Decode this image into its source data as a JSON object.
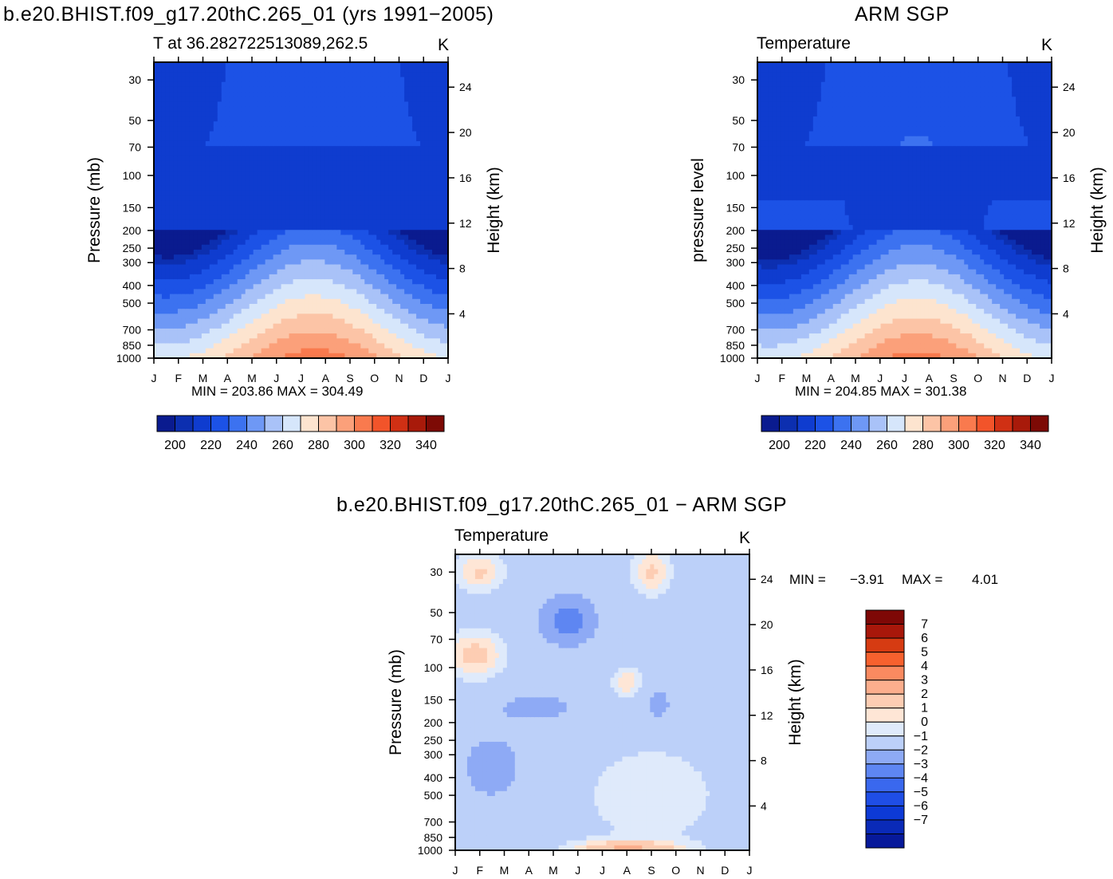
{
  "colors": {
    "abs_scale": [
      "#0a1b8f",
      "#0c2fb0",
      "#0f3ccf",
      "#1c52e6",
      "#3c72f0",
      "#6e98f5",
      "#a9c2f8",
      "#d6e6fb",
      "#fde4cf",
      "#fcc4a6",
      "#fba07a",
      "#f97a4e",
      "#f2542a",
      "#d03014",
      "#a81a0a",
      "#7d0a05"
    ],
    "diff_scale": [
      "#07199a",
      "#0a2ab8",
      "#0d3ad6",
      "#1f4ee6",
      "#3a68ee",
      "#5e86f2",
      "#8eaaf5",
      "#bcd0f9",
      "#dfeafb",
      "#fee6d6",
      "#fdcdb3",
      "#fcae8d",
      "#fa8a60",
      "#f7612e",
      "#d63b12",
      "#a8170a",
      "#7e0806"
    ]
  },
  "panels": [
    {
      "id": "model",
      "title": "b.e20.BHIST.f09_g17.20thC.265_01 (yrs 1991−2005)",
      "left_label": "T at 36.282722513089,262.5",
      "right_label": "K",
      "ylabel_left": "Pressure (mb)",
      "ylabel_right": "Height (km)",
      "minmax": "MIN = 203.86 MAX = 304.49"
    },
    {
      "id": "obs",
      "title": "ARM SGP",
      "left_label": "Temperature",
      "right_label": "K",
      "ylabel_left": "pressure level",
      "ylabel_right": "Height (km)",
      "minmax": "MIN = 204.85 MAX = 301.38"
    },
    {
      "id": "diff",
      "title": "b.e20.BHIST.f09_g17.20thC.265_01 − ARM SGP",
      "left_label": "Temperature",
      "right_label": "K",
      "ylabel_left": "Pressure (mb)",
      "ylabel_right": "Height (km)",
      "minmax_label_min": "MIN =",
      "minmax_val_min": "−3.91",
      "minmax_label_max": "MAX =",
      "minmax_val_max": "4.01"
    }
  ],
  "chart_data": [
    {
      "type": "heatmap",
      "title": "b.e20.BHIST.f09_g17.20thC.265_01 (yrs 1991−2005)",
      "x": [
        "J",
        "F",
        "M",
        "A",
        "M",
        "J",
        "J",
        "A",
        "S",
        "O",
        "N",
        "D",
        "J"
      ],
      "y_pressure_ticks": [
        "30",
        "50",
        "70",
        "100",
        "150",
        "200",
        "250",
        "300",
        "400",
        "500",
        "700",
        "850",
        "1000"
      ],
      "y_height_ticks": [
        "24",
        "20",
        "16",
        "12",
        "8",
        "4"
      ],
      "colorbar_ticks": [
        "200",
        "220",
        "240",
        "260",
        "280",
        "300",
        "320",
        "340"
      ],
      "colorbar_levels": [
        200,
        210,
        220,
        230,
        240,
        250,
        260,
        270,
        280,
        290,
        300,
        310,
        320,
        330,
        340
      ],
      "units": "K"
    },
    {
      "type": "heatmap",
      "title": "ARM SGP",
      "x": [
        "J",
        "F",
        "M",
        "A",
        "M",
        "J",
        "J",
        "A",
        "S",
        "O",
        "N",
        "D",
        "J"
      ],
      "y_pressure_ticks": [
        "30",
        "50",
        "70",
        "100",
        "150",
        "200",
        "250",
        "300",
        "400",
        "500",
        "700",
        "850",
        "1000"
      ],
      "y_height_ticks": [
        "24",
        "20",
        "16",
        "12",
        "8",
        "4"
      ],
      "colorbar_ticks": [
        "200",
        "220",
        "240",
        "260",
        "280",
        "300",
        "320",
        "340"
      ],
      "colorbar_levels": [
        200,
        210,
        220,
        230,
        240,
        250,
        260,
        270,
        280,
        290,
        300,
        310,
        320,
        330,
        340
      ],
      "units": "K"
    },
    {
      "type": "heatmap",
      "title": "b.e20.BHIST.f09_g17.20thC.265_01 − ARM SGP",
      "x": [
        "J",
        "F",
        "M",
        "A",
        "M",
        "J",
        "J",
        "A",
        "S",
        "O",
        "N",
        "D",
        "J"
      ],
      "y_pressure_ticks": [
        "30",
        "50",
        "70",
        "100",
        "150",
        "200",
        "250",
        "300",
        "400",
        "500",
        "700",
        "850",
        "1000"
      ],
      "y_height_ticks": [
        "24",
        "20",
        "16",
        "12",
        "8",
        "4"
      ],
      "colorbar_ticks": [
        "7",
        "6",
        "5",
        "4",
        "3",
        "2",
        "1",
        "0",
        "−1",
        "−2",
        "−3",
        "−4",
        "−5",
        "−6",
        "−7"
      ],
      "colorbar_levels": [
        -7,
        -6,
        -5,
        -4,
        -3,
        -2,
        -1,
        0,
        1,
        2,
        3,
        4,
        5,
        6,
        7
      ],
      "units": "K"
    }
  ]
}
